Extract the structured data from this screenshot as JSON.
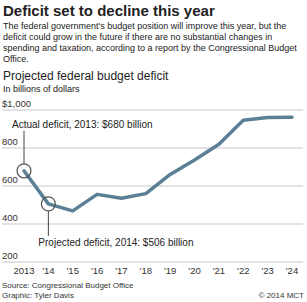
{
  "chart_data": {
    "type": "line",
    "title": "Deficit set to decline this year",
    "subtitle": "The federal government's budget position will improve this year, but the deficit could grow in the future if there are no substantial changes in spending and taxation, according to a report by the Congressional Budget Office.",
    "chart_title": "Projected federal budget deficit",
    "y_label": "In billions of dollars",
    "categories": [
      "2013",
      "'14",
      "'15",
      "'16",
      "'17",
      "'18",
      "'19",
      "'20",
      "'21",
      "'22",
      "'23",
      "'24"
    ],
    "values": [
      680,
      506,
      469,
      556,
      536,
      560,
      661,
      737,
      820,
      946,
      960,
      962
    ],
    "color": "#5b7f95",
    "ylim": [
      200,
      1000
    ],
    "yticks": [
      200,
      400,
      600,
      800,
      {
        "value": 1000,
        "label": "$1,000"
      }
    ],
    "grid": true,
    "annotations": [
      {
        "text": "Actual deficit, 2013: $680 billion",
        "x": "2013"
      },
      {
        "text": "Projected deficit, 2014: $506 billion",
        "x": "'14"
      }
    ],
    "source": "Source: Congressional Budget Office",
    "credit": "Graphic: Tyler Davis",
    "copyright": "© 2014 MCT"
  }
}
